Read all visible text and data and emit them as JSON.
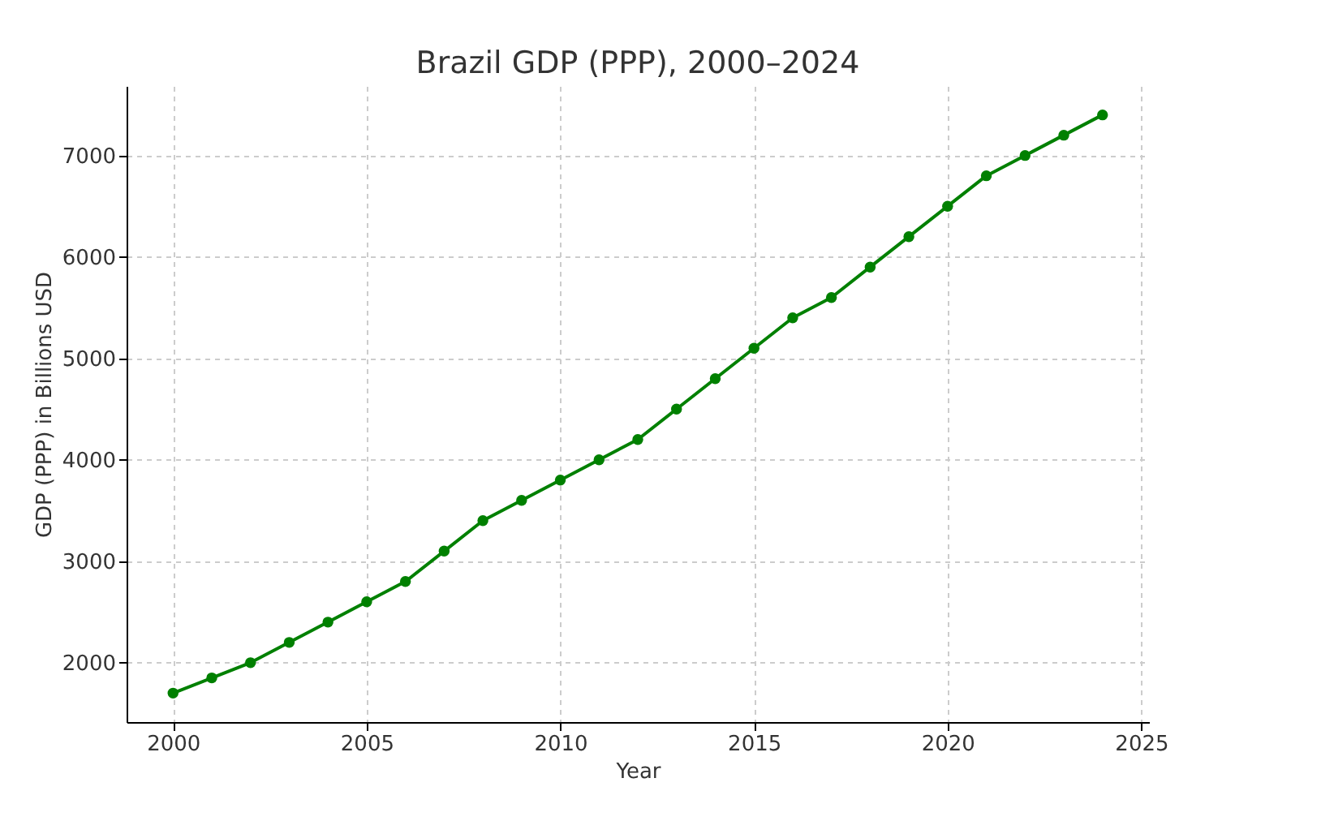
{
  "chart_data": {
    "type": "line",
    "title": "Brazil GDP (PPP), 2000–2024",
    "xlabel": "Year",
    "ylabel": "GDP (PPP) in Billions USD",
    "x": [
      2000,
      2001,
      2002,
      2003,
      2004,
      2005,
      2006,
      2007,
      2008,
      2009,
      2010,
      2011,
      2012,
      2013,
      2014,
      2015,
      2016,
      2017,
      2018,
      2019,
      2020,
      2021,
      2022,
      2023,
      2024
    ],
    "series": [
      {
        "color": "#008000",
        "values": [
          1700,
          1850,
          2000,
          2200,
          2400,
          2600,
          2800,
          3100,
          3400,
          3600,
          3800,
          4000,
          4200,
          4500,
          4800,
          5100,
          5400,
          5600,
          5900,
          6200,
          6500,
          6800,
          7000,
          7200,
          7400
        ]
      }
    ],
    "xlim": [
      1998.8,
      2025.2
    ],
    "xticks": [
      2000,
      2005,
      2010,
      2015,
      2020,
      2025
    ],
    "ylim": [
      1415,
      7685
    ],
    "yticks": [
      2000,
      3000,
      4000,
      5000,
      6000,
      7000
    ],
    "grid": true,
    "marker": "circle",
    "line_style": "solid"
  }
}
